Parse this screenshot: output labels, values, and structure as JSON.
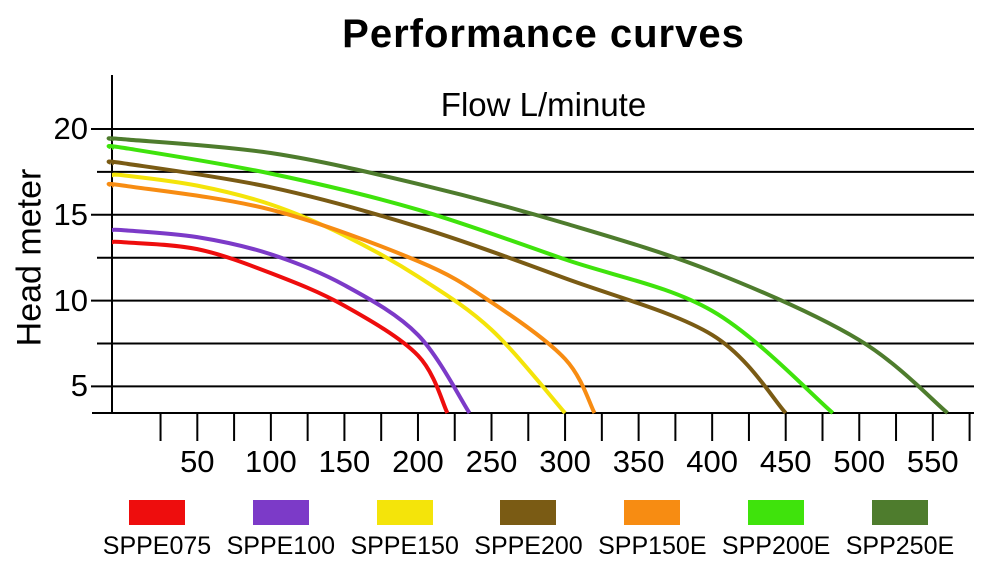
{
  "chart_data": {
    "type": "line",
    "title": "Performance curves",
    "x_axis_title": "Flow L/minute",
    "x_axis_title_position": "top",
    "ylabel": "Head meter",
    "xlabel": "Flow L/minute",
    "x_tick_labels": [
      50,
      100,
      150,
      200,
      250,
      300,
      350,
      400,
      450,
      500,
      550
    ],
    "x_minor_tick_step": 25,
    "x_minor_tick_range": [
      25,
      575
    ],
    "y_gridlines": [
      20,
      17.5,
      15,
      12.5,
      10,
      7.5,
      5
    ],
    "y_tick_labels": [
      20,
      15,
      10,
      5
    ],
    "xlim": [
      0,
      575
    ],
    "ylim": [
      3.45,
      20
    ],
    "grid": "horizontal-only",
    "legend_position": "bottom",
    "axis_color": "#000000",
    "series": [
      {
        "name": "SPPE075",
        "color": "#ee0d0d",
        "points": [
          [
            0,
            13.4
          ],
          [
            50,
            13.0
          ],
          [
            100,
            11.6
          ],
          [
            150,
            9.7
          ],
          [
            200,
            6.8
          ],
          [
            220,
            3.45
          ]
        ]
      },
      {
        "name": "SPPE100",
        "color": "#7c3ac8",
        "points": [
          [
            0,
            14.1
          ],
          [
            50,
            13.7
          ],
          [
            100,
            12.7
          ],
          [
            150,
            10.9
          ],
          [
            200,
            8.0
          ],
          [
            235,
            3.45
          ]
        ]
      },
      {
        "name": "SPPE150",
        "color": "#f4e40a",
        "points": [
          [
            0,
            17.3
          ],
          [
            50,
            16.7
          ],
          [
            100,
            15.6
          ],
          [
            150,
            13.8
          ],
          [
            200,
            11.4
          ],
          [
            250,
            8.3
          ],
          [
            300,
            3.45
          ]
        ]
      },
      {
        "name": "SPPE200",
        "color": "#7a5b14",
        "points": [
          [
            0,
            18.0
          ],
          [
            100,
            16.6
          ],
          [
            200,
            14.3
          ],
          [
            300,
            11.3
          ],
          [
            400,
            8.0
          ],
          [
            450,
            3.45
          ]
        ]
      },
      {
        "name": "SPP150E",
        "color": "#f78c12",
        "points": [
          [
            0,
            16.7
          ],
          [
            100,
            15.3
          ],
          [
            200,
            12.3
          ],
          [
            250,
            9.9
          ],
          [
            300,
            6.6
          ],
          [
            320,
            3.45
          ]
        ]
      },
      {
        "name": "SPP200E",
        "color": "#3fe30c",
        "points": [
          [
            0,
            18.9
          ],
          [
            100,
            17.4
          ],
          [
            200,
            15.3
          ],
          [
            300,
            12.4
          ],
          [
            400,
            9.4
          ],
          [
            482,
            3.45
          ]
        ]
      },
      {
        "name": "SPP250E",
        "color": "#4e7c2d",
        "points": [
          [
            0,
            19.4
          ],
          [
            100,
            18.6
          ],
          [
            200,
            16.8
          ],
          [
            300,
            14.5
          ],
          [
            400,
            11.7
          ],
          [
            500,
            7.7
          ],
          [
            560,
            3.45
          ]
        ]
      }
    ]
  }
}
